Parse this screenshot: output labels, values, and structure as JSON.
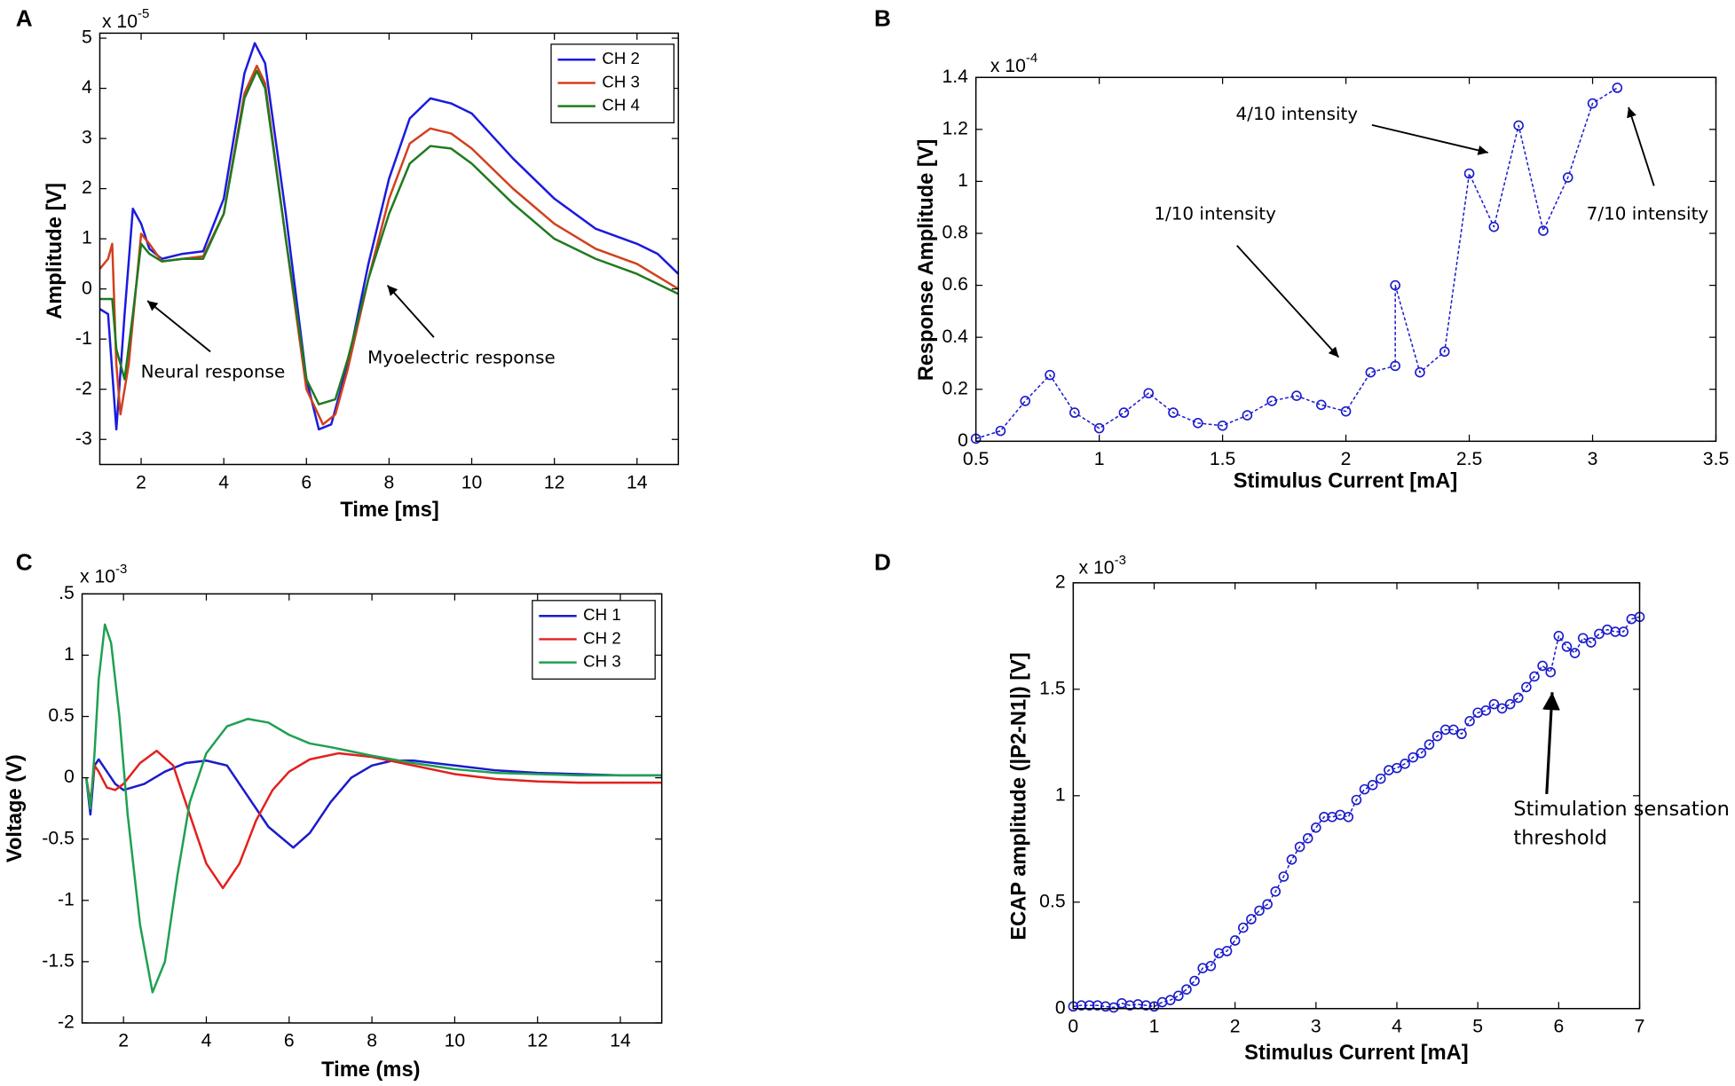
{
  "chart_data": [
    {
      "panel": "A",
      "type": "line",
      "xlabel": "Time [ms]",
      "ylabel": "Amplitude [V]",
      "y_multiplier": {
        "base": "x 10",
        "exponent": "-5"
      },
      "xlim": [
        1,
        15
      ],
      "ylim": [
        -3.5,
        5.1
      ],
      "xticks": [
        2,
        4,
        6,
        8,
        10,
        12,
        14
      ],
      "yticks": [
        -3,
        -2,
        -1,
        0,
        1,
        2,
        3,
        4,
        5
      ],
      "legend": "upper right",
      "series": [
        {
          "name": "CH 2",
          "color": "#1a1ae0",
          "x": [
            1.0,
            1.2,
            1.4,
            1.6,
            1.8,
            2.0,
            2.2,
            2.5,
            3.0,
            3.5,
            4.0,
            4.5,
            4.75,
            5.0,
            5.5,
            6.0,
            6.3,
            6.6,
            7.0,
            7.5,
            8.0,
            8.5,
            9.0,
            9.5,
            10,
            11,
            12,
            13,
            14,
            14.5,
            15
          ],
          "values": [
            -0.4,
            -0.5,
            -2.8,
            -0.5,
            1.6,
            1.3,
            0.8,
            0.6,
            0.7,
            0.75,
            1.8,
            4.3,
            4.9,
            4.5,
            1.5,
            -1.8,
            -2.8,
            -2.7,
            -1.5,
            0.5,
            2.2,
            3.4,
            3.8,
            3.7,
            3.5,
            2.6,
            1.8,
            1.2,
            0.9,
            0.7,
            0.3
          ]
        },
        {
          "name": "CH 3",
          "color": "#d2401c",
          "x": [
            1.0,
            1.2,
            1.3,
            1.4,
            1.5,
            1.7,
            2.0,
            2.2,
            2.5,
            3.0,
            3.5,
            4.0,
            4.5,
            4.8,
            5.0,
            5.5,
            6.0,
            6.4,
            6.7,
            7.0,
            7.5,
            8.0,
            8.5,
            9.0,
            9.5,
            10,
            11,
            12,
            13,
            14,
            15
          ],
          "values": [
            0.4,
            0.6,
            0.9,
            -1.5,
            -2.5,
            -1.5,
            1.1,
            0.9,
            0.55,
            0.6,
            0.65,
            1.5,
            3.9,
            4.45,
            4.1,
            1.0,
            -2.0,
            -2.7,
            -2.5,
            -1.6,
            0.2,
            1.8,
            2.9,
            3.2,
            3.1,
            2.8,
            2.0,
            1.3,
            0.8,
            0.5,
            0
          ]
        },
        {
          "name": "CH 4",
          "color": "#1f7a1f",
          "x": [
            1.0,
            1.3,
            1.4,
            1.6,
            1.8,
            2.0,
            2.2,
            2.5,
            3.0,
            3.5,
            4.0,
            4.5,
            4.8,
            5.0,
            5.5,
            6.0,
            6.3,
            6.7,
            7.0,
            7.5,
            8.0,
            8.5,
            9.0,
            9.5,
            10,
            11,
            12,
            13,
            14,
            15
          ],
          "values": [
            -0.2,
            -0.2,
            -1.2,
            -1.8,
            -0.5,
            0.9,
            0.7,
            0.55,
            0.6,
            0.6,
            1.5,
            3.8,
            4.35,
            4.0,
            1.0,
            -1.8,
            -2.3,
            -2.2,
            -1.4,
            0.2,
            1.5,
            2.5,
            2.85,
            2.8,
            2.5,
            1.7,
            1.0,
            0.6,
            0.3,
            -0.1
          ]
        }
      ],
      "annotations": [
        {
          "text": "Neural response"
        },
        {
          "text": "Myoelectric response"
        }
      ]
    },
    {
      "panel": "B",
      "type": "line",
      "xlabel": "Stimulus Current [mA]",
      "ylabel": "Response Amplitude [V]",
      "y_multiplier": {
        "base": "x 10",
        "exponent": "-4"
      },
      "xlim": [
        0.5,
        3.5
      ],
      "ylim": [
        0,
        1.4
      ],
      "xticks": [
        0.5,
        1,
        1.5,
        2,
        2.5,
        3,
        3.5
      ],
      "yticks": [
        0,
        0.2,
        0.4,
        0.6,
        0.8,
        1,
        1.2,
        1.4
      ],
      "series": [
        {
          "color": "#1a1acc",
          "marker": "circle",
          "line_style": "dashed",
          "x": [
            0.5,
            0.6,
            0.7,
            0.8,
            0.9,
            1.0,
            1.1,
            1.2,
            1.3,
            1.4,
            1.5,
            1.6,
            1.7,
            1.8,
            1.9,
            2.0,
            2.1,
            2.2,
            2.2,
            2.3,
            2.4,
            2.5,
            2.6,
            2.7,
            2.8,
            2.9,
            3.0,
            3.1
          ],
          "values": [
            0.01,
            0.04,
            0.155,
            0.255,
            0.11,
            0.05,
            0.11,
            0.185,
            0.11,
            0.07,
            0.06,
            0.1,
            0.155,
            0.175,
            0.14,
            0.115,
            0.265,
            0.29,
            0.6,
            0.265,
            0.345,
            1.03,
            0.825,
            1.215,
            0.81,
            1.015,
            1.3,
            1.36
          ]
        }
      ],
      "annotations": [
        {
          "text": "4/10 intensity"
        },
        {
          "text": "1/10 intensity"
        },
        {
          "text": "7/10 intensity"
        }
      ]
    },
    {
      "panel": "C",
      "type": "line",
      "xlabel": "Time (ms)",
      "ylabel": "Voltage (V)",
      "y_multiplier": {
        "base": "x 10",
        "exponent": "-3"
      },
      "xlim": [
        1,
        15
      ],
      "ylim": [
        -2,
        1.5
      ],
      "xticks": [
        2,
        4,
        6,
        8,
        10,
        12,
        14
      ],
      "yticks": [
        -2,
        -1.5,
        -1,
        -0.5,
        0,
        0.5,
        1,
        {
          "value": 1.5,
          "label": ".5"
        }
      ],
      "legend": "upper right",
      "series": [
        {
          "name": "CH 1",
          "color": "#1a1acc",
          "x": [
            1.1,
            1.2,
            1.3,
            1.4,
            1.6,
            1.8,
            2.0,
            2.5,
            3.0,
            3.5,
            4.0,
            4.5,
            5.0,
            5.5,
            6.1,
            6.5,
            7.0,
            7.5,
            8.0,
            8.5,
            9.0,
            10,
            11,
            12,
            13,
            14,
            15
          ],
          "values": [
            0,
            -0.3,
            0.1,
            0.15,
            0.05,
            -0.05,
            -0.1,
            -0.05,
            0.05,
            0.12,
            0.14,
            0.1,
            -0.15,
            -0.4,
            -0.57,
            -0.45,
            -0.2,
            0.0,
            0.1,
            0.14,
            0.14,
            0.1,
            0.06,
            0.04,
            0.03,
            0.02,
            0.02
          ]
        },
        {
          "name": "CH 2",
          "color": "#e3201c",
          "x": [
            1.1,
            1.2,
            1.3,
            1.4,
            1.6,
            1.8,
            2.0,
            2.4,
            2.8,
            3.2,
            3.6,
            4.0,
            4.4,
            4.8,
            5.2,
            5.6,
            6.0,
            6.5,
            7.2,
            8.0,
            9.0,
            10,
            11,
            12,
            13,
            14,
            15
          ],
          "values": [
            0,
            -0.2,
            0.1,
            0.05,
            -0.08,
            -0.1,
            -0.05,
            0.12,
            0.22,
            0.1,
            -0.3,
            -0.7,
            -0.9,
            -0.7,
            -0.35,
            -0.1,
            0.05,
            0.15,
            0.2,
            0.17,
            0.1,
            0.03,
            -0.01,
            -0.03,
            -0.04,
            -0.04,
            -0.04
          ]
        },
        {
          "name": "CH 3",
          "color": "#1fa052",
          "x": [
            1.1,
            1.2,
            1.3,
            1.4,
            1.55,
            1.7,
            1.9,
            2.1,
            2.4,
            2.7,
            3.0,
            3.3,
            3.6,
            4.0,
            4.5,
            5.0,
            5.5,
            6.0,
            6.5,
            7.0,
            8.0,
            9.0,
            10,
            11,
            12,
            13,
            14,
            15
          ],
          "values": [
            0,
            -0.25,
            0.2,
            0.8,
            1.25,
            1.1,
            0.5,
            -0.3,
            -1.2,
            -1.75,
            -1.5,
            -0.8,
            -0.2,
            0.2,
            0.42,
            0.48,
            0.45,
            0.35,
            0.28,
            0.25,
            0.18,
            0.12,
            0.07,
            0.04,
            0.03,
            0.02,
            0.02,
            0.02
          ]
        }
      ]
    },
    {
      "panel": "D",
      "type": "line",
      "xlabel": "Stimulus Current [mA]",
      "ylabel": "ECAP amplitude (|P2-N1|) [V]",
      "y_multiplier": {
        "base": "x 10",
        "exponent": "-3"
      },
      "xlim": [
        0,
        7
      ],
      "ylim": [
        0,
        2
      ],
      "xticks": [
        0,
        1,
        2,
        3,
        4,
        5,
        6,
        7
      ],
      "yticks": [
        0,
        0.5,
        1,
        1.5,
        2
      ],
      "series": [
        {
          "color": "#1a1acc",
          "marker": "circle",
          "line_style": "dashed",
          "x": [
            0,
            0.1,
            0.2,
            0.3,
            0.4,
            0.5,
            0.6,
            0.7,
            0.8,
            0.9,
            1.0,
            1.1,
            1.2,
            1.3,
            1.4,
            1.5,
            1.6,
            1.7,
            1.8,
            1.9,
            2.0,
            2.1,
            2.2,
            2.3,
            2.4,
            2.5,
            2.6,
            2.7,
            2.8,
            2.9,
            3.0,
            3.1,
            3.2,
            3.3,
            3.4,
            3.5,
            3.6,
            3.7,
            3.8,
            3.9,
            4.0,
            4.1,
            4.2,
            4.3,
            4.4,
            4.5,
            4.6,
            4.7,
            4.8,
            4.9,
            5.0,
            5.1,
            5.2,
            5.3,
            5.4,
            5.5,
            5.6,
            5.7,
            5.8,
            5.9,
            6.0,
            6.1,
            6.2,
            6.3,
            6.4,
            6.5,
            6.6,
            6.7,
            6.8,
            6.9,
            7.0
          ],
          "values": [
            0.01,
            0.015,
            0.015,
            0.015,
            0.01,
            0.005,
            0.025,
            0.015,
            0.02,
            0.015,
            0.01,
            0.03,
            0.04,
            0.06,
            0.09,
            0.13,
            0.19,
            0.2,
            0.26,
            0.27,
            0.32,
            0.38,
            0.42,
            0.46,
            0.49,
            0.55,
            0.62,
            0.7,
            0.76,
            0.8,
            0.85,
            0.9,
            0.9,
            0.91,
            0.9,
            0.98,
            1.03,
            1.05,
            1.08,
            1.12,
            1.13,
            1.15,
            1.18,
            1.2,
            1.24,
            1.28,
            1.31,
            1.31,
            1.29,
            1.35,
            1.39,
            1.4,
            1.43,
            1.41,
            1.43,
            1.46,
            1.51,
            1.56,
            1.61,
            1.58,
            1.75,
            1.7,
            1.67,
            1.74,
            1.72,
            1.76,
            1.78,
            1.77,
            1.77,
            1.83,
            1.84
          ]
        }
      ],
      "annotations": [
        {
          "text": [
            "Stimulation sensation",
            "threshold"
          ]
        }
      ]
    }
  ]
}
